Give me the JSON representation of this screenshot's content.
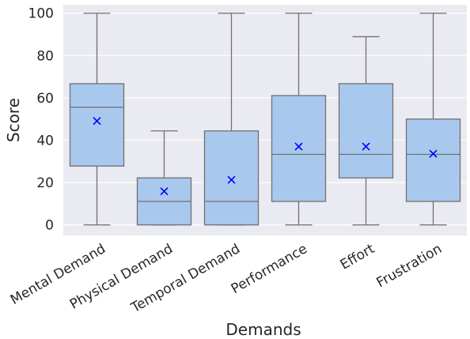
{
  "chart_data": {
    "type": "box",
    "xlabel": "Demands",
    "ylabel": "Score",
    "ylim": [
      -5,
      104
    ],
    "yticks": [
      0,
      20,
      40,
      60,
      80,
      100
    ],
    "grid": true,
    "colors": {
      "background": "#eaeaf2",
      "grid": "#ffffff",
      "box_fill": "#a9c8ee",
      "box_stroke": "#707070",
      "mean_marker": "#0000ff",
      "text": "#262626"
    },
    "mean_marker_shape": "x",
    "categories": [
      "Mental Demand",
      "Physical Demand",
      "Temporal Demand",
      "Performance",
      "Effort",
      "Frustration"
    ],
    "boxes": [
      {
        "category": "Mental Demand",
        "whisker_low": 0,
        "q1": 27.8,
        "median": 55.6,
        "q3": 66.7,
        "whisker_high": 100,
        "mean": 49.1
      },
      {
        "category": "Physical Demand",
        "whisker_low": 0,
        "q1": 0,
        "median": 11.1,
        "q3": 22.2,
        "whisker_high": 44.4,
        "mean": 15.9
      },
      {
        "category": "Temporal Demand",
        "whisker_low": 0,
        "q1": 0,
        "median": 11.1,
        "q3": 44.4,
        "whisker_high": 100,
        "mean": 21.3
      },
      {
        "category": "Performance",
        "whisker_low": 0,
        "q1": 11.1,
        "median": 33.3,
        "q3": 61.1,
        "whisker_high": 100,
        "mean": 37.0
      },
      {
        "category": "Effort",
        "whisker_low": 0,
        "q1": 22.2,
        "median": 33.3,
        "q3": 66.7,
        "whisker_high": 88.9,
        "mean": 37.0
      },
      {
        "category": "Frustration",
        "whisker_low": 0,
        "q1": 11.1,
        "median": 33.3,
        "q3": 50.0,
        "whisker_high": 100,
        "mean": 33.6
      }
    ]
  }
}
